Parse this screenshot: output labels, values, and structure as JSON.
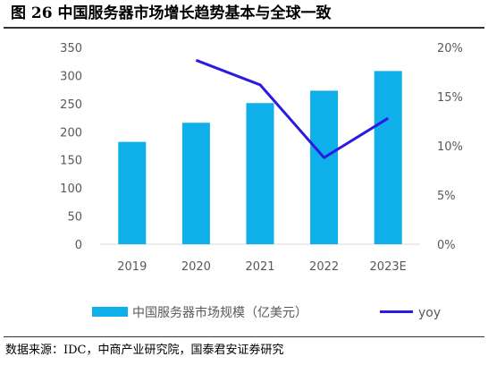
{
  "title": "图 26  中国服务器市场增长趋势基本与全球一致",
  "source": "数据来源：IDC，中商产业研究院，国泰君安证券研究",
  "colors": {
    "bar": "#0FAFE9",
    "line": "#2B1BE0",
    "axis_text": "#595959"
  },
  "chart_data": {
    "type": "bar+line",
    "categories": [
      "2019",
      "2020",
      "2021",
      "2022",
      "2023E"
    ],
    "series": [
      {
        "name": "中国服务器市场规模（亿美元）",
        "type": "bar",
        "axis": "left",
        "values": [
          182,
          216,
          251,
          273,
          308
        ]
      },
      {
        "name": "yoy",
        "type": "line",
        "axis": "right",
        "values": [
          null,
          18.7,
          16.2,
          8.8,
          12.8
        ]
      }
    ],
    "y_left": {
      "min": 0,
      "max": 350,
      "ticks": [
        "0",
        "50",
        "100",
        "150",
        "200",
        "250",
        "300",
        "350"
      ]
    },
    "y_right": {
      "min": 0,
      "max": 20,
      "ticks": [
        "0%",
        "5%",
        "10%",
        "15%",
        "20%"
      ]
    },
    "grid": false,
    "legend_position": "bottom"
  }
}
